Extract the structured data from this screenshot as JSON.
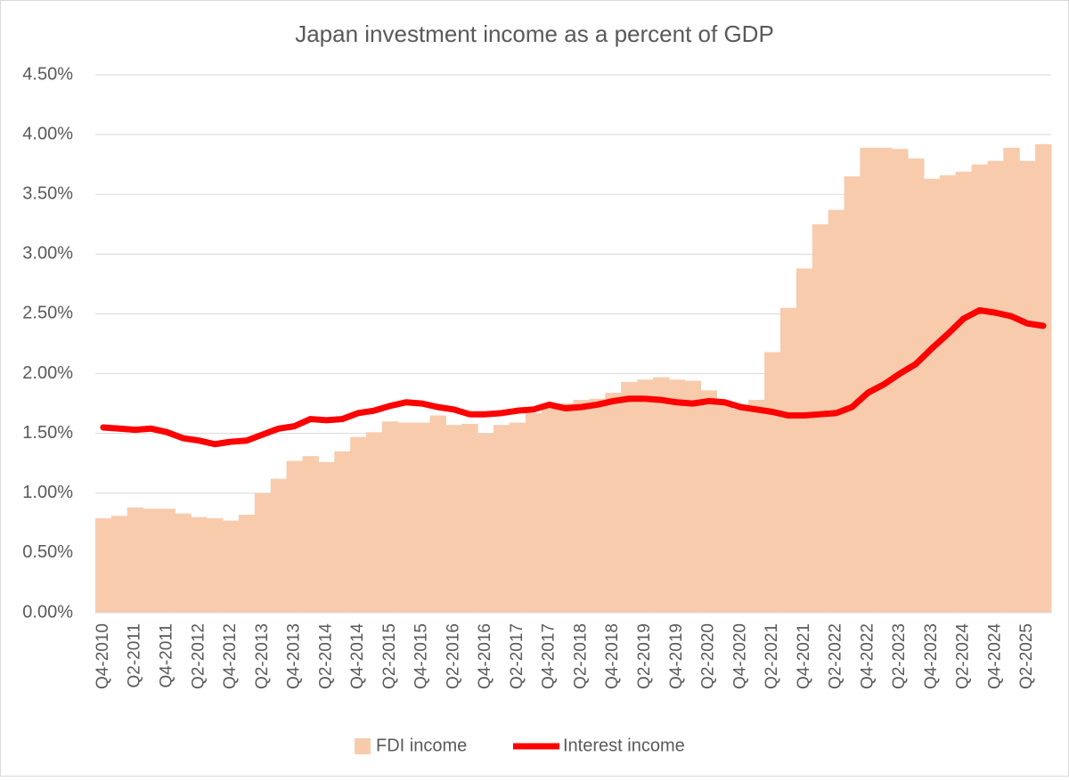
{
  "chart_data": {
    "type": "combo",
    "title": "Japan investment income as a percent of GDP",
    "categories": [
      "Q4-2010",
      null,
      "Q2-2011",
      null,
      "Q4-2011",
      null,
      "Q2-2012",
      null,
      "Q4-2012",
      null,
      "Q2-2013",
      null,
      "Q4-2013",
      null,
      "Q2-2014",
      null,
      "Q4-2014",
      null,
      "Q2-2015",
      null,
      "Q4-2015",
      null,
      "Q2-2016",
      null,
      "Q4-2016",
      null,
      "Q2-2017",
      null,
      "Q4-2017",
      null,
      "Q2-2018",
      null,
      "Q4-2018",
      null,
      "Q2-2019",
      null,
      "Q4-2019",
      null,
      "Q2-2020",
      null,
      "Q4-2020",
      null,
      "Q2-2021",
      null,
      "Q4-2021",
      null,
      "Q2-2022",
      null,
      "Q4-2022",
      null,
      "Q2-2023",
      null,
      "Q4-2023",
      null,
      "Q2-2024",
      null,
      "Q4-2024",
      null,
      "Q2-2025",
      null
    ],
    "series": [
      {
        "name": "FDI income",
        "type": "bar",
        "color": "#f8cbad",
        "values": [
          0.79,
          0.81,
          0.88,
          0.87,
          0.87,
          0.83,
          0.8,
          0.79,
          0.77,
          0.82,
          1.0,
          1.12,
          1.27,
          1.31,
          1.26,
          1.35,
          1.47,
          1.51,
          1.6,
          1.59,
          1.59,
          1.65,
          1.57,
          1.58,
          1.5,
          1.57,
          1.59,
          1.67,
          1.72,
          1.75,
          1.78,
          1.79,
          1.84,
          1.93,
          1.95,
          1.97,
          1.95,
          1.94,
          1.86,
          1.76,
          1.7,
          1.78,
          2.18,
          2.55,
          2.88,
          3.25,
          3.37,
          3.65,
          3.89,
          3.89,
          3.88,
          3.8,
          3.63,
          3.66,
          3.69,
          3.75,
          3.78,
          3.89,
          3.78,
          3.92
        ]
      },
      {
        "name": "Interest income",
        "type": "line",
        "color": "#ff0000",
        "values": [
          1.55,
          1.54,
          1.53,
          1.54,
          1.51,
          1.46,
          1.44,
          1.41,
          1.43,
          1.44,
          1.49,
          1.54,
          1.56,
          1.62,
          1.61,
          1.62,
          1.67,
          1.69,
          1.73,
          1.76,
          1.75,
          1.72,
          1.7,
          1.66,
          1.66,
          1.67,
          1.69,
          1.7,
          1.74,
          1.71,
          1.72,
          1.74,
          1.77,
          1.79,
          1.79,
          1.78,
          1.76,
          1.75,
          1.77,
          1.76,
          1.72,
          1.7,
          1.68,
          1.65,
          1.65,
          1.66,
          1.67,
          1.72,
          1.84,
          1.91,
          2.0,
          2.08,
          2.21,
          2.33,
          2.46,
          2.53,
          2.51,
          2.48,
          2.42,
          2.4
        ]
      }
    ],
    "ylim": [
      0,
      4.5
    ],
    "yticks": [
      {
        "value": 0,
        "label": "0.00%"
      },
      {
        "value": 0.5,
        "label": "0.50%"
      },
      {
        "value": 1,
        "label": "1.00%"
      },
      {
        "value": 1.5,
        "label": "1.50%"
      },
      {
        "value": 2,
        "label": "2.00%"
      },
      {
        "value": 2.5,
        "label": "2.50%"
      },
      {
        "value": 3,
        "label": "3.00%"
      },
      {
        "value": 3.5,
        "label": "3.50%"
      },
      {
        "value": 4,
        "label": "4.00%"
      },
      {
        "value": 4.5,
        "label": "4.50%"
      }
    ],
    "grid": true,
    "legend": "bottom"
  }
}
